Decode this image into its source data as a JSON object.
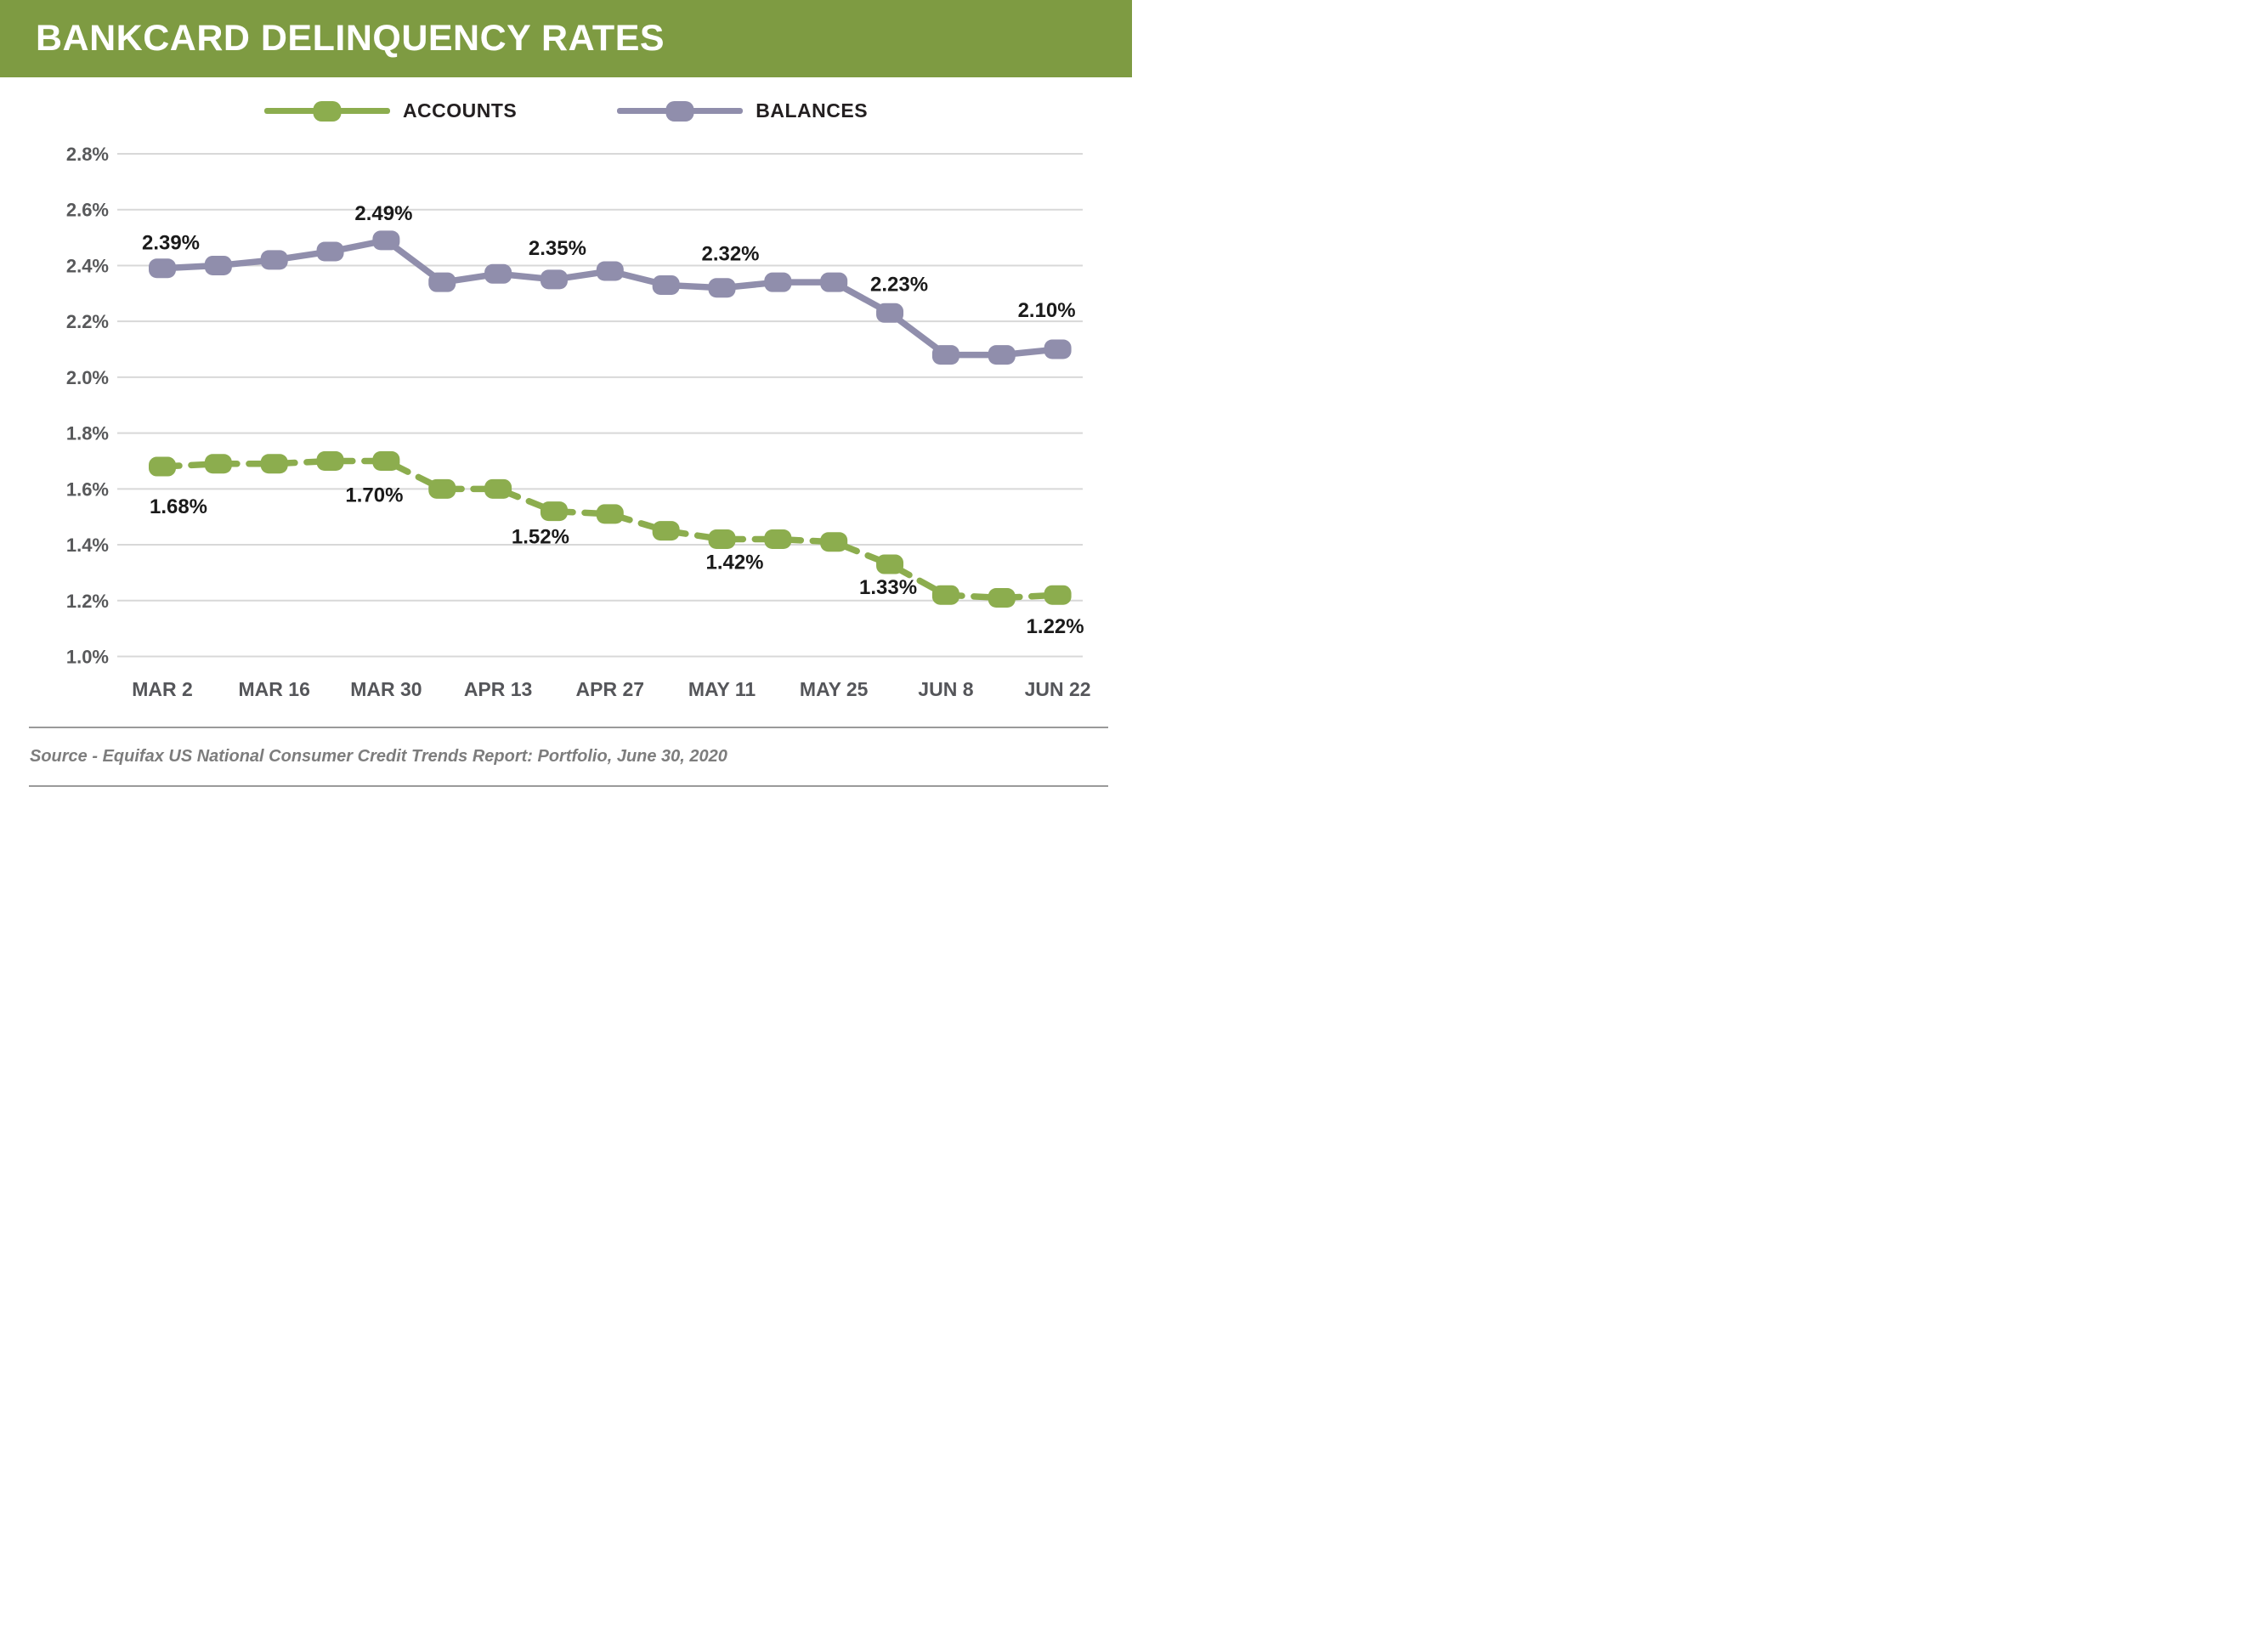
{
  "header": {
    "title": "BANKCARD DELINQUENCY RATES",
    "bg_color": "#7E9B42",
    "text_color": "#FFFFFF"
  },
  "chart_data": {
    "type": "line",
    "title": "BANKCARD DELINQUENCY RATES",
    "x": [
      "MAR 2",
      "MAR 9",
      "MAR 16",
      "MAR 23",
      "MAR 30",
      "APR 6",
      "APR 13",
      "APR 20",
      "APR 27",
      "MAY 4",
      "MAY 11",
      "MAY 18",
      "MAY 25",
      "JUN 1",
      "JUN 8",
      "JUN 15",
      "JUN 22"
    ],
    "x_axis_ticks": [
      "MAR 2",
      "MAR 16",
      "MAR 30",
      "APR 13",
      "APR 27",
      "MAY 11",
      "MAY 25",
      "JUN 8",
      "JUN 22"
    ],
    "y_axis": {
      "min": 1.0,
      "max": 2.8,
      "step": 0.2,
      "format": "percent",
      "grid": true,
      "tick_labels": [
        "2.8%",
        "2.6%",
        "2.4%",
        "2.2%",
        "2.0%",
        "1.8%",
        "1.6%",
        "1.4%",
        "1.2%",
        "1.0%"
      ]
    },
    "legend_position": "top-center",
    "series": [
      {
        "name": "ACCOUNTS",
        "color": "#8CAD4E",
        "line_style": "dashed",
        "values": [
          1.68,
          1.69,
          1.69,
          1.7,
          1.7,
          1.6,
          1.6,
          1.52,
          1.51,
          1.45,
          1.42,
          1.42,
          1.41,
          1.33,
          1.22,
          1.21,
          1.22
        ],
        "point_labels": [
          {
            "index": 0,
            "text": "1.68%",
            "dx": 19,
            "dy": 47
          },
          {
            "index": 4,
            "text": "1.70%",
            "dx": -14,
            "dy": 40
          },
          {
            "index": 7,
            "text": "1.52%",
            "dx": -16,
            "dy": 30
          },
          {
            "index": 10,
            "text": "1.42%",
            "dx": 15,
            "dy": 27
          },
          {
            "index": 13,
            "text": "1.33%",
            "dx": -2,
            "dy": 27
          },
          {
            "index": 16,
            "text": "1.22%",
            "dx": -3,
            "dy": 37
          }
        ]
      },
      {
        "name": "BALANCES",
        "color": "#908EAC",
        "line_style": "solid",
        "values": [
          2.39,
          2.4,
          2.42,
          2.45,
          2.49,
          2.34,
          2.37,
          2.35,
          2.38,
          2.33,
          2.32,
          2.34,
          2.34,
          2.23,
          2.08,
          2.08,
          2.1
        ],
        "point_labels": [
          {
            "index": 0,
            "text": "2.39%",
            "dx": 10,
            "dy": -30
          },
          {
            "index": 4,
            "text": "2.49%",
            "dx": -3,
            "dy": -32
          },
          {
            "index": 7,
            "text": "2.35%",
            "dx": 4,
            "dy": -37
          },
          {
            "index": 10,
            "text": "2.32%",
            "dx": 10,
            "dy": -40
          },
          {
            "index": 13,
            "text": "2.23%",
            "dx": 11,
            "dy": -34
          },
          {
            "index": 16,
            "text": "2.10%",
            "dx": -13,
            "dy": -46
          }
        ]
      }
    ],
    "source": "Source - Equifax US National Consumer Credit Trends Report: Portfolio, June 30, 2020"
  },
  "footer": {
    "source_label": "Source - Equifax US National Consumer Credit Trends Report: Portfolio, June 30, 2020"
  },
  "colors": {
    "gridline": "#D8D8D8",
    "axis_text": "#58595B",
    "data_label": "#1A1A1A",
    "footer_rule": "#9A9A9A",
    "source_text": "#7D7D7D"
  }
}
